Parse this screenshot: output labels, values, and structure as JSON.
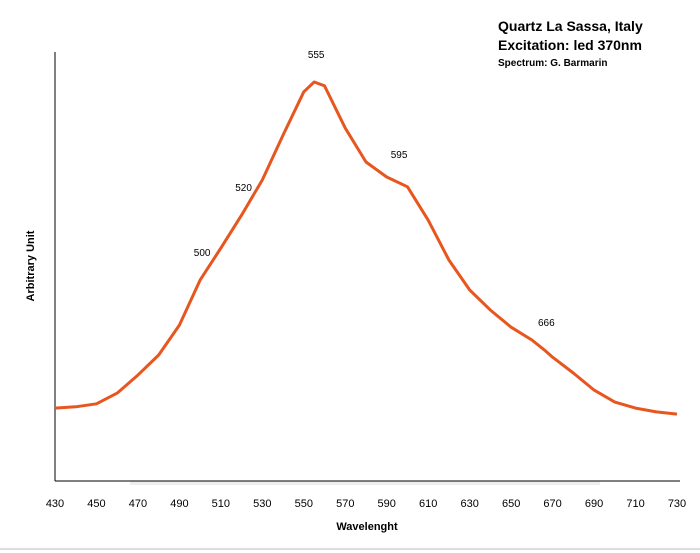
{
  "chart_data": {
    "type": "line",
    "title": [
      "Quartz La Sassa, Italy",
      "Excitation: led 370nm"
    ],
    "subtitle": "Spectrum: G. Barmarin",
    "xlabel": "Wavelenght",
    "ylabel": "Arbitrary Unit",
    "x": [
      430,
      440,
      450,
      460,
      470,
      480,
      490,
      500,
      510,
      520,
      530,
      540,
      550,
      555,
      560,
      570,
      580,
      590,
      600,
      610,
      620,
      630,
      640,
      650,
      660,
      666,
      670,
      680,
      690,
      700,
      710,
      720,
      730
    ],
    "values": [
      16.8,
      17.1,
      17.8,
      20.3,
      24.5,
      29.2,
      36.2,
      46.7,
      54.2,
      61.9,
      70.1,
      80.6,
      90.7,
      93.0,
      92.1,
      82.2,
      74.3,
      70.8,
      68.5,
      60.7,
      51.4,
      44.4,
      39.7,
      35.7,
      32.7,
      30.4,
      28.7,
      25.0,
      21.0,
      18.2,
      16.8,
      15.9,
      15.4
    ],
    "color": "#e8561f",
    "annotations": [
      500,
      520,
      555,
      595,
      666
    ],
    "xlim": [
      430,
      730
    ],
    "ylim": [
      0,
      100
    ],
    "xticks": [
      430,
      450,
      470,
      490,
      510,
      530,
      550,
      570,
      590,
      610,
      630,
      650,
      670,
      690,
      710,
      730
    ],
    "grid": false
  }
}
